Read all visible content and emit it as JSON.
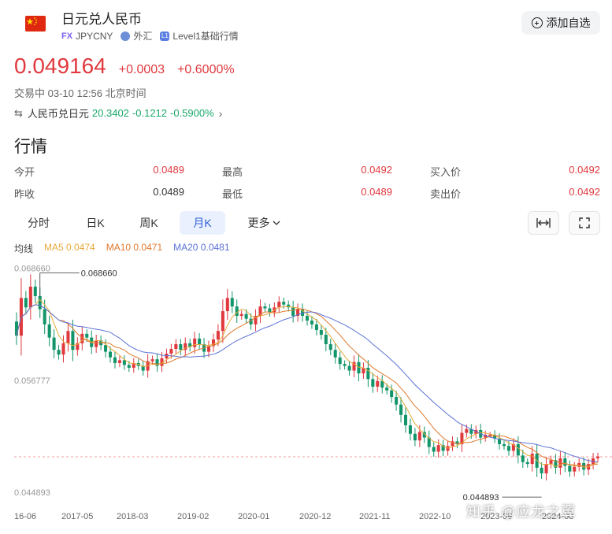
{
  "header": {
    "title": "日元兑人民币",
    "fx_tag": "FX",
    "symbol": "JPYCNY",
    "market": "外汇",
    "level_tag": "L1",
    "level": "Level1基础行情",
    "add_button": "添加自选"
  },
  "quote": {
    "price": "0.049164",
    "change": "+0.0003",
    "change_pct": "+0.6000%",
    "status": "交易中 03-10 12:56 北京时间"
  },
  "inverse": {
    "label": "人民币兑日元",
    "price": "20.3402",
    "change": "-0.1212",
    "change_pct": "-0.5900%"
  },
  "section_title": "行情",
  "stats": {
    "open_label": "今开",
    "open": "0.0489",
    "high_label": "最高",
    "high": "0.0492",
    "bid_label": "买入价",
    "bid": "0.0492",
    "prev_label": "昨收",
    "prev": "0.0489",
    "low_label": "最低",
    "low": "0.0489",
    "ask_label": "卖出价",
    "ask": "0.0492"
  },
  "tabs": [
    "分时",
    "日K",
    "周K",
    "月K",
    "更多"
  ],
  "active_tab": "月K",
  "ma": {
    "label": "均线",
    "ma5": "MA5 0.0474",
    "ma10": "MA10 0.0471",
    "ma20": "MA20 0.0481"
  },
  "colors": {
    "up": "#e0393e",
    "down": "#13956a",
    "ma5": "#e8a93a",
    "ma10": "#e07a2e",
    "ma20": "#5b73d6",
    "accent": "#2b5fd9"
  },
  "chart_data": {
    "type": "candlestick",
    "y_labels": [
      "0.068660",
      "0.056777",
      "0.044893"
    ],
    "ylim": [
      0.0444,
      0.0692
    ],
    "x_labels": [
      "16-06",
      "2017-05",
      "2018-03",
      "2019-02",
      "2020-01",
      "2020-12",
      "2021-11",
      "2022-10",
      "2023-09",
      "2024-08"
    ],
    "max_annotation": "0.068660",
    "min_annotation": "0.044893",
    "current_price": 0.049164,
    "candles_close": [
      0.062,
      0.066,
      0.065,
      0.0672,
      0.0662,
      0.0648,
      0.0632,
      0.0618,
      0.0605,
      0.06,
      0.0612,
      0.0625,
      0.0605,
      0.0612,
      0.0622,
      0.0618,
      0.0608,
      0.0615,
      0.061,
      0.0603,
      0.0597,
      0.0591,
      0.0594,
      0.0589,
      0.0586,
      0.0591,
      0.0588,
      0.0583,
      0.0593,
      0.0595,
      0.0588,
      0.0596,
      0.0601,
      0.0606,
      0.0611,
      0.0605,
      0.0612,
      0.0608,
      0.0617,
      0.0611,
      0.0603,
      0.0609,
      0.0616,
      0.0625,
      0.0646,
      0.066,
      0.0651,
      0.0641,
      0.0643,
      0.0638,
      0.0632,
      0.0641,
      0.0651,
      0.0649,
      0.0645,
      0.065,
      0.0656,
      0.0653,
      0.065,
      0.0641,
      0.0648,
      0.0641,
      0.0636,
      0.0632,
      0.0626,
      0.0621,
      0.0611,
      0.0605,
      0.0597,
      0.059,
      0.0588,
      0.0583,
      0.0592,
      0.058,
      0.0586,
      0.0574,
      0.0566,
      0.0572,
      0.0565,
      0.0562,
      0.0555,
      0.0547,
      0.0536,
      0.0525,
      0.0516,
      0.0509,
      0.0518,
      0.0512,
      0.0502,
      0.0497,
      0.0504,
      0.0498,
      0.0503,
      0.0508,
      0.0505,
      0.0517,
      0.0521,
      0.0516,
      0.052,
      0.0512,
      0.0515,
      0.0515,
      0.0511,
      0.0505,
      0.0503,
      0.0498,
      0.0505,
      0.0493,
      0.0486,
      0.0484,
      0.0495,
      0.048,
      0.0474,
      0.0484,
      0.0488,
      0.048,
      0.049,
      0.0482,
      0.0476,
      0.0481,
      0.0485,
      0.0478,
      0.0484,
      0.049,
      0.0492
    ]
  }
}
